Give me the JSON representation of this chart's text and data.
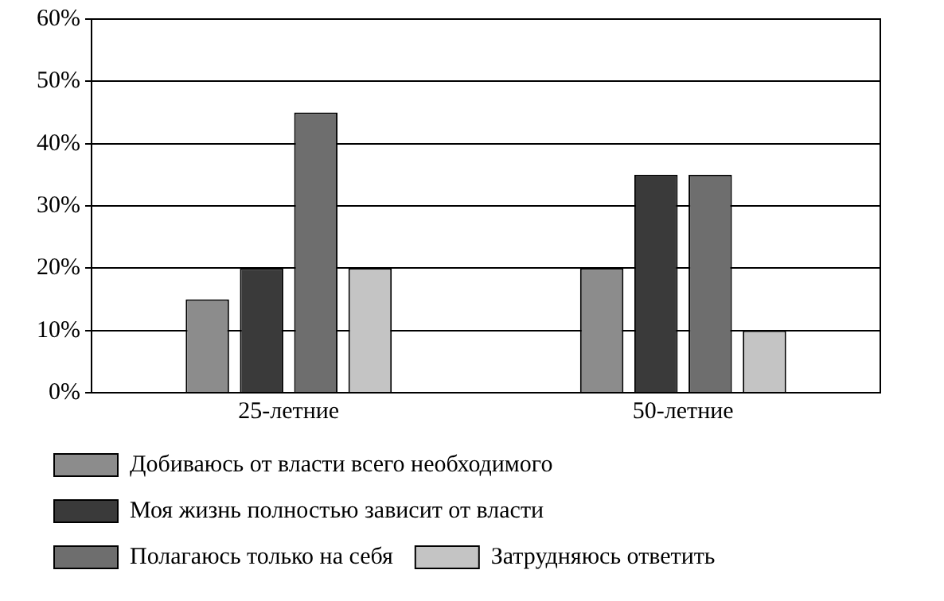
{
  "chart_data": {
    "type": "bar",
    "categories": [
      "25-летние",
      "50-летние"
    ],
    "series": [
      {
        "name": "Добиваюсь от власти всего необходимого",
        "color": "#8c8c8c",
        "values": [
          15,
          20
        ]
      },
      {
        "name": "Моя жизнь полностью зависит от власти",
        "color": "#3a3a3a",
        "values": [
          20,
          35
        ]
      },
      {
        "name": "Полагаюсь только на себя",
        "color": "#6e6e6e",
        "values": [
          45,
          35
        ]
      },
      {
        "name": "Затрудняюсь ответить",
        "color": "#c4c4c4",
        "values": [
          20,
          10
        ]
      }
    ],
    "ylim": [
      0,
      60
    ],
    "yticks": [
      {
        "value": 0,
        "label": "0%"
      },
      {
        "value": 10,
        "label": "10%"
      },
      {
        "value": 20,
        "label": "20%"
      },
      {
        "value": 30,
        "label": "30%"
      },
      {
        "value": 40,
        "label": "40%"
      },
      {
        "value": 50,
        "label": "50%"
      },
      {
        "value": 60,
        "label": "60%"
      }
    ],
    "grid": "y",
    "legend": "bottom"
  }
}
